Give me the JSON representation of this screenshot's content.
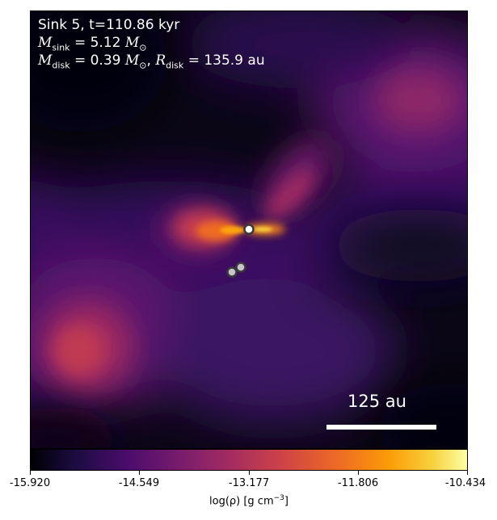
{
  "annotation": {
    "line1": "Sink 5, t=110.86 kyr",
    "m_sink_value": "= 5.12",
    "m_disk_value": "= 0.39",
    "r_disk_value": "= 135.9 au",
    "m_sym": "M",
    "r_sym": "R",
    "sub_sink": "sink",
    "sub_disk": "disk",
    "sun": "⊙",
    "comma": ","
  },
  "scalebar": {
    "label": "125 au"
  },
  "colorbar": {
    "ticks": [
      "-15.920",
      "-14.549",
      "-13.177",
      "-11.806",
      "-10.434"
    ],
    "label_pre": "log(ρ) [g cm",
    "label_exp": "−3",
    "label_post": "]",
    "colormap": "inferno"
  },
  "sinks": {
    "count": 3
  }
}
